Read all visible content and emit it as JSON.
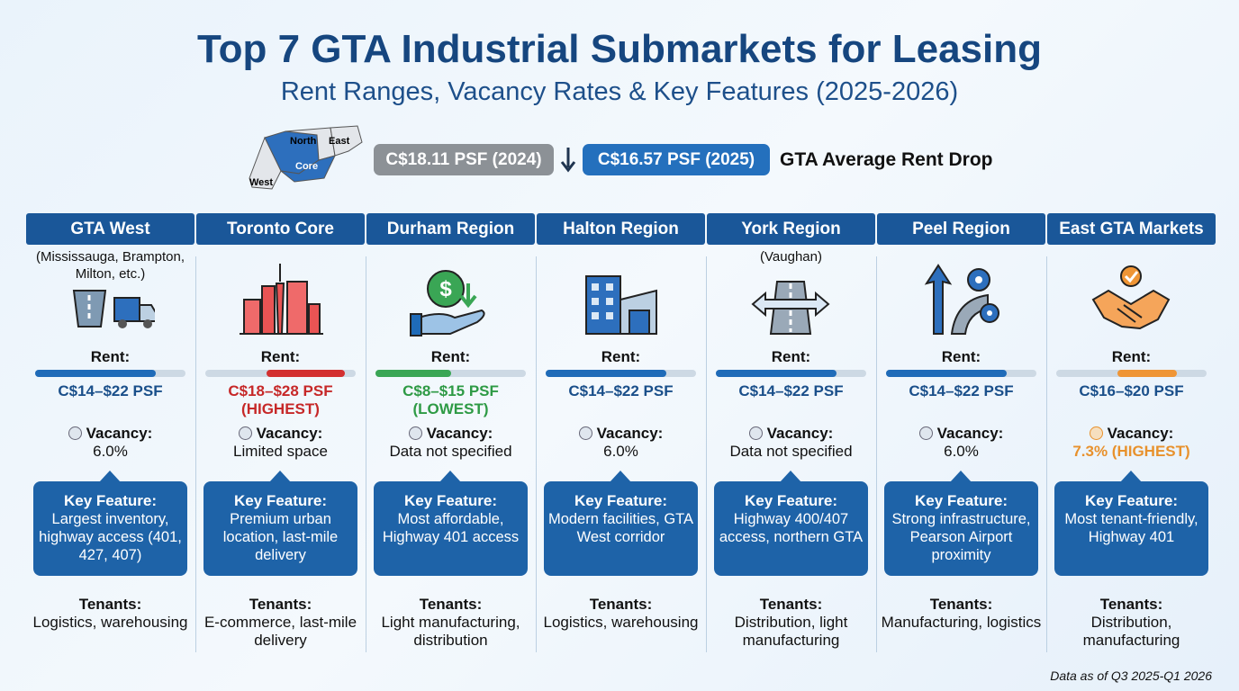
{
  "header": {
    "title": "Top 7 GTA Industrial Submarkets for Leasing",
    "subtitle": "Rent Ranges, Vacancy Rates & Key Features (2025-2026)"
  },
  "map": {
    "labels": [
      "North",
      "East",
      "Core",
      "West"
    ]
  },
  "rent_drop": {
    "before": "C$18.11 PSF (2024)",
    "after": "C$16.57 PSF (2025)",
    "label": "GTA Average Rent Drop"
  },
  "columns": [
    {
      "name": "GTA West",
      "note": "(Mississauga, Brampton, Milton, etc.)",
      "rent_label": "Rent:",
      "rent": "C$14–$22 PSF",
      "rent_color": "#1a4f8a",
      "vacancy_label": "Vacancy:",
      "vacancy": "6.0%",
      "feature_label": "Key Feature:",
      "feature": "Largest inventory, highway access (401, 427, 407)",
      "tenants_label": "Tenants:",
      "tenants": "Logistics, warehousing"
    },
    {
      "name": "Toronto Core",
      "rent_label": "Rent:",
      "rent": "C$18–$28 PSF",
      "rent_note": "(HIGHEST)",
      "rent_color": "#c62828",
      "vacancy_label": "Vacancy:",
      "vacancy": "Limited space",
      "feature_label": "Key Feature:",
      "feature": "Premium urban location, last-mile delivery",
      "tenants_label": "Tenants:",
      "tenants": "E-commerce, last-mile delivery"
    },
    {
      "name": "Durham Region",
      "rent_label": "Rent:",
      "rent": "C$8–$15 PSF",
      "rent_note": "(LOWEST)",
      "rent_color": "#2e9a45",
      "vacancy_label": "Vacancy:",
      "vacancy": "Data not specified",
      "feature_label": "Key Feature:",
      "feature": "Most affordable, Highway 401 access",
      "tenants_label": "Tenants:",
      "tenants": "Light manufacturing, distribution"
    },
    {
      "name": "Halton Region",
      "rent_label": "Rent:",
      "rent": "C$14–$22 PSF",
      "rent_color": "#1a4f8a",
      "vacancy_label": "Vacancy:",
      "vacancy": "6.0%",
      "feature_label": "Key Feature:",
      "feature": "Modern facilities, GTA West corridor",
      "tenants_label": "Tenants:",
      "tenants": "Logistics, warehousing"
    },
    {
      "name": "York Region",
      "note": "(Vaughan)",
      "rent_label": "Rent:",
      "rent": "C$14–$22 PSF",
      "rent_color": "#1a4f8a",
      "vacancy_label": "Vacancy:",
      "vacancy": "Data not specified",
      "feature_label": "Key Feature:",
      "feature": "Highway 400/407 access, northern GTA",
      "tenants_label": "Tenants:",
      "tenants": "Distribution, light manufacturing"
    },
    {
      "name": "Peel Region",
      "rent_label": "Rent:",
      "rent": "C$14–$22 PSF",
      "rent_color": "#1a4f8a",
      "vacancy_label": "Vacancy:",
      "vacancy": "6.0%",
      "feature_label": "Key Feature:",
      "feature": "Strong infrastructure, Pearson Airport proximity",
      "tenants_label": "Tenants:",
      "tenants": "Manufacturing, logistics"
    },
    {
      "name": "East GTA Markets",
      "rent_label": "Rent:",
      "rent": "C$16–$20 PSF",
      "rent_color": "#1a4f8a",
      "vacancy_label": "Vacancy:",
      "vacancy": "7.3% (HIGHEST)",
      "vacancy_color": "#e8912c",
      "feature_label": "Key Feature:",
      "feature": "Most tenant-friendly, Highway 401",
      "tenants_label": "Tenants:",
      "tenants": "Distribution, manufacturing"
    }
  ],
  "footer": {
    "note": "Data as of Q3 2025-Q1 2026"
  }
}
